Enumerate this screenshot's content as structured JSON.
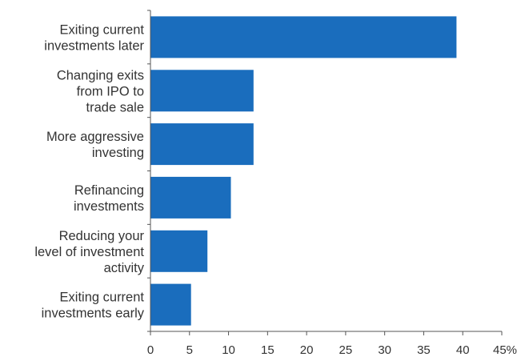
{
  "chart_data": {
    "type": "bar",
    "orientation": "horizontal",
    "categories": [
      [
        "Exiting current",
        "investments later"
      ],
      [
        "Changing exits",
        "from IPO to",
        "trade sale"
      ],
      [
        "More aggressive",
        "investing"
      ],
      [
        "Refinancing",
        "investments"
      ],
      [
        "Reducing your",
        "level of investment",
        "activity"
      ],
      [
        "Exiting current",
        "investments early"
      ]
    ],
    "values": [
      39.2,
      13.2,
      13.2,
      10.3,
      7.3,
      5.2
    ],
    "xlim": [
      0,
      45
    ],
    "xticks": [
      0,
      5,
      10,
      15,
      20,
      25,
      30,
      35,
      40,
      45
    ],
    "xtick_labels": [
      "0",
      "5",
      "10",
      "15",
      "20",
      "25",
      "30",
      "35",
      "40",
      "45%"
    ],
    "grid": false,
    "bar_color": "#1a6dbd"
  }
}
